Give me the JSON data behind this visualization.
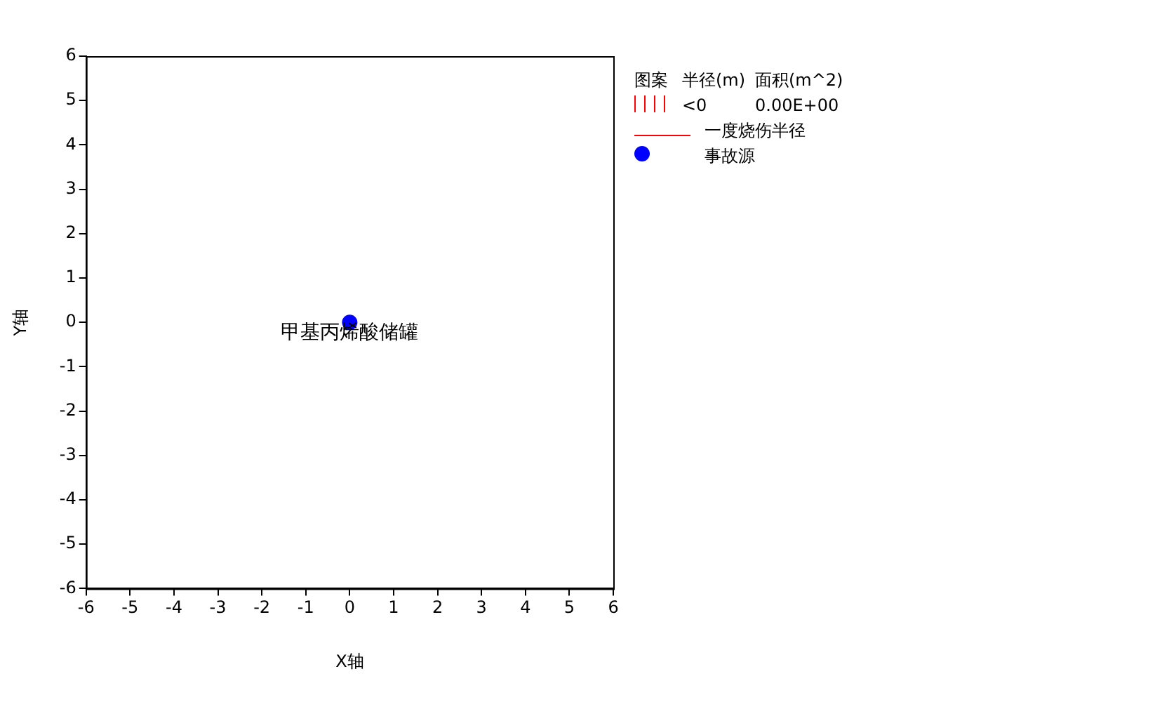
{
  "chart_data": {
    "type": "scatter",
    "xlabel": "X轴",
    "ylabel": "Y轴",
    "xlim": [
      -6,
      6
    ],
    "xticks": [
      -6,
      -5,
      -4,
      -3,
      -2,
      -1,
      0,
      1,
      2,
      3,
      4,
      5,
      6
    ],
    "ylim": [
      -6,
      6
    ],
    "yticks": [
      -6,
      -5,
      -4,
      -3,
      -2,
      -1,
      0,
      1,
      2,
      3,
      4,
      5,
      6
    ],
    "x": [
      0
    ],
    "grid": false,
    "legend": "right",
    "marker": "circle",
    "series": [
      {
        "name": "一度烧伤半径",
        "type": "line",
        "color": "#ff0000",
        "values": [
          null
        ]
      },
      {
        "name": "事故源",
        "color": "#0000ff",
        "values": [
          0
        ]
      }
    ],
    "annotations": [
      "图案",
      "半径(m)",
      "面积(m^2)",
      "<0",
      "0.00E+00",
      {
        "text": "甲基丙烯酸储罐",
        "x": 0,
        "y": 0
      }
    ]
  }
}
